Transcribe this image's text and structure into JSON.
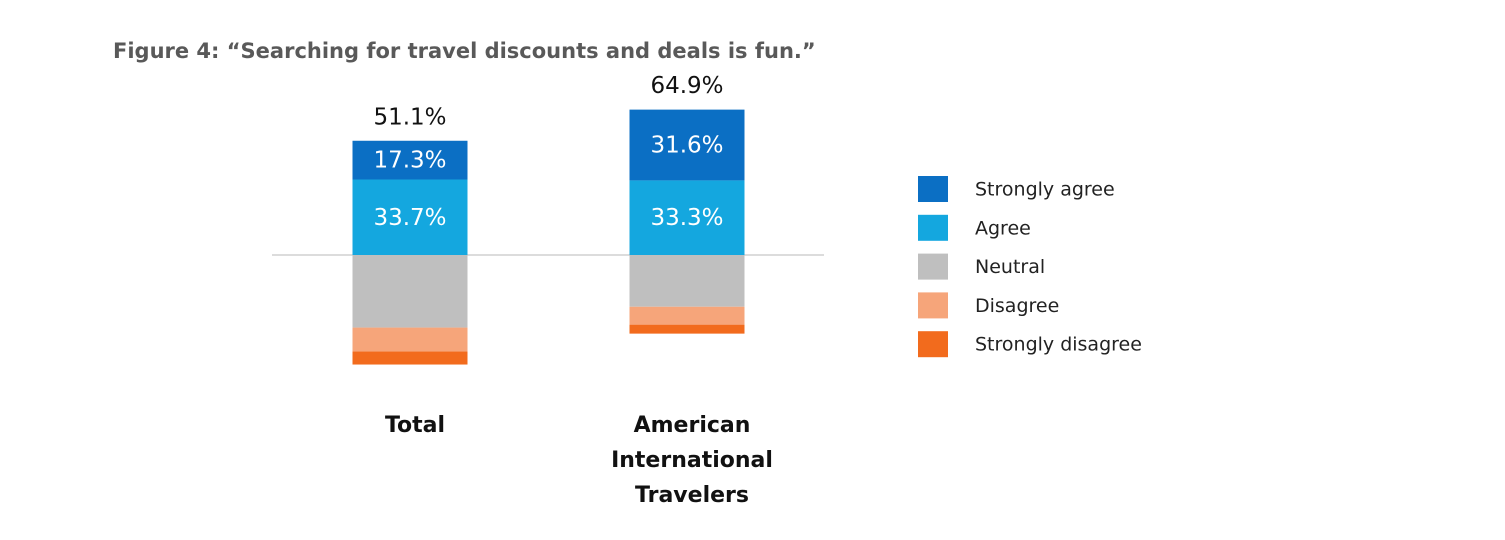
{
  "chart_data": {
    "type": "diverging-stacked-bar",
    "title": "Figure 4: “Searching for travel discounts and deals is fun.”",
    "categories": [
      "Total",
      "American International Travelers"
    ],
    "ylim": [
      -50,
      70
    ],
    "totals": [
      51.1,
      64.9
    ],
    "total_labels": [
      "51.1%",
      "64.9%"
    ],
    "legend": "right",
    "series": [
      {
        "name": "Strongly agree",
        "color": "#0b6fc4",
        "values": [
          17.3,
          31.6
        ],
        "value_labels": [
          "17.3%",
          "31.6%"
        ]
      },
      {
        "name": "Agree",
        "color": "#14a7df",
        "values": [
          33.7,
          33.3
        ],
        "value_labels": [
          "33.7%",
          "33.3%"
        ]
      },
      {
        "name": "Neutral",
        "color": "#bfbfbf",
        "values": [
          -32.4,
          -23.1
        ]
      },
      {
        "name": "Disagree",
        "color": "#f6a57a",
        "values": [
          -10.7,
          -8.0
        ]
      },
      {
        "name": "Strongly disagree",
        "color": "#f26b1d",
        "values": [
          -5.8,
          -4.0
        ]
      }
    ]
  }
}
